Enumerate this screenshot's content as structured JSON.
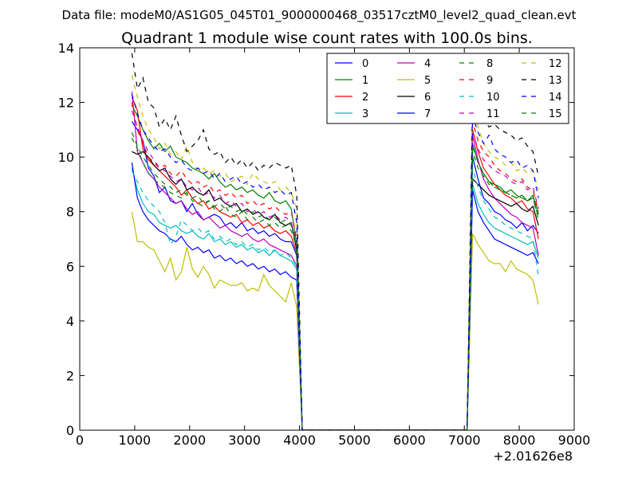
{
  "figure": {
    "suptitle": "Data file: modeM0/AS1G05_045T01_9000000468_03517cztM0_level2_quad_clean.evt",
    "offset_label": "+2.01626e8"
  },
  "chart_data": {
    "type": "line",
    "title": "Quadrant 1 module wise count rates with 100.0s bins.",
    "xlabel": "",
    "ylabel": "",
    "xlim": [
      0,
      9000
    ],
    "ylim": [
      0,
      14
    ],
    "x_offset": 201626000,
    "xticks": [
      0,
      1000,
      2000,
      3000,
      4000,
      5000,
      6000,
      7000,
      8000,
      9000
    ],
    "yticks": [
      0,
      2,
      4,
      6,
      8,
      10,
      12,
      14
    ],
    "grid": false,
    "legend_position": "top-right",
    "segments": {
      "first": {
        "x_start": 950,
        "x_end": 3950,
        "step": 100
      },
      "gap_x": [
        4050,
        7050
      ],
      "second": {
        "x_start": 7150,
        "x_end": 8350,
        "step": 100
      }
    },
    "series": [
      {
        "name": "0",
        "color": "#0000ff",
        "dash": false,
        "first": [
          11.3,
          11.0,
          10.6,
          9.6,
          9.3,
          8.7,
          8.9,
          8.4,
          8.3,
          8.4,
          8.0,
          8.3,
          7.9,
          7.7,
          7.8,
          7.9,
          7.8,
          7.5,
          7.6,
          7.4,
          7.6,
          7.3,
          7.4,
          7.2,
          7.3,
          7.1,
          7.2,
          7.0,
          6.9,
          6.9,
          6.4
        ],
        "second": [
          10.0,
          9.2,
          8.5,
          8.3,
          8.0,
          7.9,
          7.7,
          7.6,
          7.4,
          7.6,
          7.3,
          7.5,
          7.2
        ]
      },
      {
        "name": "1",
        "color": "#008000",
        "dash": false,
        "first": [
          11.9,
          11.5,
          11.0,
          10.6,
          10.3,
          10.5,
          10.2,
          10.4,
          10.0,
          9.9,
          9.8,
          9.6,
          9.5,
          9.4,
          9.2,
          9.4,
          9.1,
          8.9,
          9.0,
          8.8,
          8.9,
          8.7,
          8.8,
          8.6,
          8.5,
          8.7,
          8.4,
          8.3,
          8.4,
          8.1,
          6.8
        ],
        "second": [
          10.5,
          9.8,
          9.4,
          9.1,
          9.0,
          8.9,
          8.7,
          8.8,
          8.6,
          8.5,
          8.4,
          8.6,
          7.9
        ]
      },
      {
        "name": "2",
        "color": "#ff0000",
        "dash": false,
        "first": [
          12.2,
          11.7,
          10.3,
          9.9,
          9.7,
          9.5,
          9.3,
          9.1,
          8.9,
          8.6,
          8.8,
          8.5,
          8.3,
          8.4,
          8.1,
          8.2,
          8.0,
          7.9,
          7.8,
          7.9,
          7.6,
          7.7,
          7.5,
          7.6,
          7.4,
          7.5,
          7.3,
          7.2,
          7.3,
          7.1,
          6.5
        ],
        "second": [
          11.0,
          10.2,
          9.6,
          9.3,
          9.0,
          8.8,
          8.6,
          8.5,
          8.3,
          8.4,
          8.1,
          8.0,
          7.0
        ]
      },
      {
        "name": "3",
        "color": "#00bfbf",
        "dash": false,
        "first": [
          9.6,
          8.8,
          8.3,
          8.0,
          7.9,
          7.6,
          7.5,
          7.4,
          7.5,
          7.3,
          7.2,
          7.3,
          7.1,
          7.0,
          7.2,
          6.9,
          7.0,
          6.8,
          6.9,
          6.7,
          6.8,
          6.6,
          6.7,
          6.5,
          6.6,
          6.4,
          6.6,
          6.4,
          6.3,
          6.2,
          5.9
        ],
        "second": [
          9.0,
          8.3,
          7.9,
          7.6,
          7.4,
          7.3,
          7.2,
          7.1,
          7.0,
          6.9,
          6.8,
          6.9,
          6.3
        ]
      },
      {
        "name": "4",
        "color": "#bf00bf",
        "dash": false,
        "first": [
          12.4,
          10.2,
          9.8,
          9.4,
          9.2,
          8.9,
          8.7,
          8.5,
          8.3,
          8.4,
          8.1,
          7.9,
          8.0,
          7.7,
          7.8,
          7.6,
          7.4,
          7.5,
          7.3,
          7.2,
          7.1,
          7.2,
          7.0,
          6.9,
          7.0,
          6.8,
          6.7,
          6.6,
          6.5,
          6.4,
          6.0
        ],
        "second": [
          10.8,
          9.9,
          9.2,
          8.8,
          8.5,
          8.3,
          8.1,
          7.9,
          7.8,
          7.6,
          7.5,
          7.4,
          6.4
        ]
      },
      {
        "name": "5",
        "color": "#bfbf00",
        "dash": false,
        "first": [
          8.0,
          6.9,
          6.9,
          6.7,
          6.6,
          6.2,
          5.8,
          6.3,
          5.5,
          5.8,
          6.7,
          5.9,
          5.6,
          6.0,
          5.7,
          5.2,
          5.5,
          5.4,
          5.3,
          5.3,
          5.4,
          5.1,
          5.2,
          5.1,
          5.7,
          5.3,
          5.1,
          4.9,
          4.7,
          5.4,
          4.5
        ],
        "second": [
          7.2,
          6.8,
          6.5,
          6.2,
          6.1,
          6.1,
          5.8,
          6.2,
          5.9,
          5.8,
          5.7,
          5.5,
          4.6
        ]
      },
      {
        "name": "6",
        "color": "#000000",
        "dash": false,
        "first": [
          10.2,
          10.1,
          10.2,
          10.0,
          9.7,
          9.5,
          9.6,
          9.2,
          9.0,
          9.2,
          8.8,
          8.9,
          8.7,
          8.6,
          8.8,
          8.4,
          8.5,
          8.3,
          8.2,
          8.3,
          8.0,
          8.1,
          7.9,
          8.0,
          7.8,
          7.7,
          7.9,
          7.6,
          7.5,
          7.6,
          6.6
        ],
        "second": [
          9.2,
          9.0,
          8.8,
          8.6,
          8.5,
          8.4,
          8.3,
          8.2,
          8.3,
          8.1,
          8.0,
          8.2,
          7.5
        ]
      },
      {
        "name": "7",
        "color": "#0000ff",
        "dash": false,
        "first": [
          9.8,
          8.5,
          8.0,
          7.7,
          7.5,
          7.3,
          7.2,
          7.0,
          6.9,
          7.1,
          6.8,
          6.6,
          6.7,
          6.5,
          6.6,
          6.3,
          6.4,
          6.2,
          6.3,
          6.1,
          6.2,
          6.0,
          6.1,
          5.9,
          6.0,
          5.8,
          5.9,
          5.7,
          5.8,
          5.6,
          5.5
        ],
        "second": [
          8.8,
          8.0,
          7.6,
          7.3,
          7.0,
          6.9,
          6.8,
          6.7,
          6.6,
          6.5,
          6.4,
          6.5,
          6.1
        ]
      },
      {
        "name": "8",
        "color": "#008000",
        "dash": true,
        "first": [
          10.7,
          10.3,
          9.8,
          9.4,
          9.2,
          9.0,
          8.9,
          8.7,
          8.6,
          8.5,
          8.7,
          8.4,
          8.3,
          8.2,
          8.4,
          8.1,
          8.0,
          8.2,
          7.9,
          7.8,
          8.0,
          7.7,
          7.8,
          7.6,
          7.7,
          7.5,
          7.6,
          7.4,
          7.5,
          7.3,
          6.7
        ],
        "second": [
          10.2,
          9.6,
          9.3,
          9.0,
          8.9,
          8.8,
          8.7,
          8.6,
          8.5,
          8.6,
          8.4,
          8.5,
          7.8
        ]
      },
      {
        "name": "9",
        "color": "#ff0000",
        "dash": true,
        "first": [
          12.0,
          11.0,
          10.5,
          10.0,
          9.8,
          9.6,
          9.7,
          9.4,
          9.3,
          9.5,
          9.2,
          9.0,
          9.1,
          8.9,
          9.0,
          8.7,
          8.8,
          8.6,
          8.7,
          8.5,
          8.6,
          8.3,
          8.4,
          8.2,
          8.3,
          8.1,
          8.2,
          8.0,
          7.9,
          8.0,
          7.0
        ],
        "second": [
          11.3,
          10.6,
          10.2,
          10.0,
          9.7,
          9.5,
          9.4,
          9.2,
          9.1,
          9.2,
          8.9,
          8.8,
          8.0
        ]
      },
      {
        "name": "10",
        "color": "#00bfbf",
        "dash": true,
        "first": [
          9.5,
          9.1,
          8.7,
          8.4,
          8.2,
          8.0,
          7.6,
          6.8,
          7.1,
          7.7,
          7.5,
          7.3,
          7.4,
          7.2,
          7.3,
          7.0,
          7.1,
          6.9,
          7.0,
          6.8,
          6.9,
          6.7,
          6.8,
          6.6,
          6.7,
          6.5,
          6.6,
          6.4,
          6.5,
          6.3,
          6.0
        ],
        "second": [
          9.6,
          8.9,
          8.4,
          8.1,
          7.8,
          7.7,
          7.5,
          7.4,
          7.3,
          7.2,
          7.1,
          7.0,
          5.6
        ]
      },
      {
        "name": "11",
        "color": "#bf00bf",
        "dash": true,
        "first": [
          11.7,
          11.1,
          10.6,
          10.2,
          9.9,
          9.6,
          9.5,
          9.3,
          9.1,
          9.2,
          8.9,
          8.8,
          8.9,
          8.6,
          8.7,
          8.5,
          8.6,
          8.3,
          8.4,
          8.2,
          8.3,
          8.0,
          8.1,
          7.9,
          8.0,
          7.8,
          7.9,
          7.7,
          7.8,
          7.6,
          6.9
        ],
        "second": [
          10.9,
          10.3,
          9.9,
          9.7,
          9.5,
          9.4,
          9.3,
          9.1,
          9.0,
          9.1,
          8.8,
          8.9,
          8.1
        ]
      },
      {
        "name": "12",
        "color": "#bfbf00",
        "dash": true,
        "first": [
          13.0,
          12.2,
          11.5,
          11.0,
          10.7,
          10.3,
          10.5,
          10.1,
          10.2,
          9.9,
          10.4,
          9.8,
          9.5,
          9.6,
          9.4,
          9.5,
          9.3,
          9.4,
          9.1,
          9.2,
          9.3,
          9.0,
          9.4,
          9.2,
          9.1,
          9.0,
          9.1,
          8.8,
          8.9,
          8.7,
          8.1
        ],
        "second": [
          11.9,
          11.1,
          10.5,
          10.2,
          10.0,
          9.9,
          9.7,
          9.8,
          9.5,
          9.6,
          9.4,
          9.5,
          8.8
        ]
      },
      {
        "name": "13",
        "color": "#000000",
        "dash": true,
        "first": [
          13.8,
          12.5,
          12.9,
          12.0,
          11.8,
          11.1,
          11.4,
          11.0,
          11.5,
          10.8,
          10.2,
          10.4,
          10.6,
          11.0,
          10.3,
          10.1,
          10.2,
          9.8,
          10.0,
          9.7,
          9.9,
          9.6,
          9.8,
          9.5,
          9.7,
          9.6,
          9.8,
          9.7,
          9.6,
          9.7,
          8.6
        ],
        "second": [
          12.2,
          11.7,
          11.4,
          11.1,
          11.2,
          11.0,
          10.9,
          10.8,
          10.6,
          10.7,
          10.4,
          10.2,
          9.3
        ]
      },
      {
        "name": "14",
        "color": "#0000ff",
        "dash": true,
        "first": [
          12.3,
          11.6,
          11.0,
          10.7,
          10.4,
          10.2,
          10.3,
          10.0,
          9.8,
          9.9,
          9.6,
          9.5,
          9.6,
          9.4,
          9.5,
          9.2,
          9.4,
          9.1,
          9.2,
          9.3,
          9.0,
          9.1,
          8.9,
          9.0,
          8.8,
          8.9,
          8.7,
          8.8,
          8.6,
          8.7,
          7.6
        ],
        "second": [
          11.5,
          10.9,
          10.5,
          10.8,
          10.3,
          10.1,
          10.0,
          9.8,
          9.9,
          9.6,
          9.7,
          9.5,
          8.5
        ]
      },
      {
        "name": "15",
        "color": "#008000",
        "dash": true,
        "first": [
          10.9,
          10.4,
          10.0,
          9.7,
          9.4,
          9.2,
          9.0,
          8.9,
          8.7,
          8.8,
          8.6,
          8.5,
          8.6,
          8.3,
          8.4,
          8.2,
          8.3,
          8.1,
          8.2,
          8.0,
          8.1,
          7.9,
          8.0,
          7.8,
          7.9,
          7.7,
          7.8,
          7.6,
          7.7,
          7.5,
          6.8
        ],
        "second": [
          10.4,
          9.8,
          9.4,
          9.1,
          8.9,
          8.8,
          8.7,
          8.6,
          8.5,
          8.6,
          8.4,
          8.5,
          7.7
        ]
      }
    ]
  }
}
